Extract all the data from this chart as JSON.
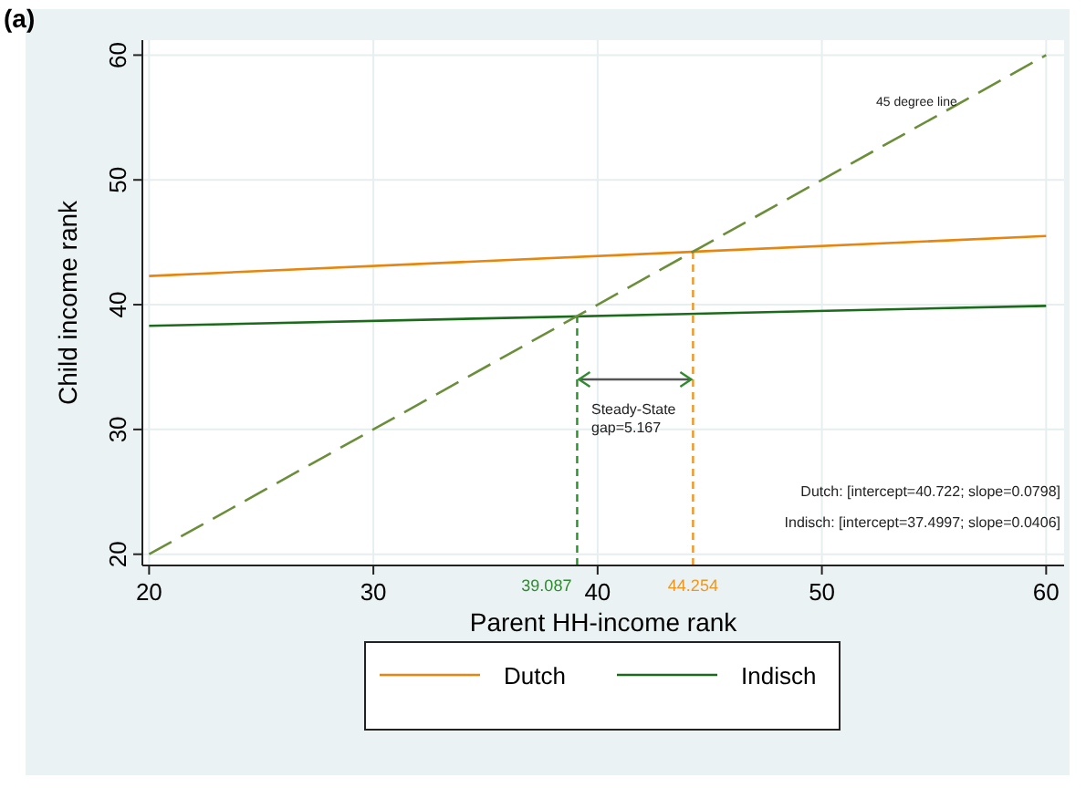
{
  "chart_data": {
    "type": "line",
    "title": "(a)",
    "xlabel": "Parent HH-income rank",
    "ylabel": "Child income rank",
    "x": [
      20,
      60
    ],
    "series": [
      {
        "name": "Dutch",
        "color": "#e8850c",
        "values": [
          42.3,
          45.5
        ]
      },
      {
        "name": "Indisch",
        "color": "#1a6b1a",
        "values": [
          38.3,
          39.9
        ]
      },
      {
        "color": "#6b8e3a",
        "values": [
          20,
          60
        ],
        "line_style": "dashed"
      }
    ],
    "xlim": [
      19.7,
      60.8
    ],
    "ylim": [
      19.1,
      61.2
    ],
    "xticks": [
      20,
      30,
      40,
      50,
      60
    ],
    "yticks": [
      20,
      30,
      40,
      50,
      60
    ],
    "grid": true,
    "legend": "bottom",
    "marker": "none",
    "line_style": "solid",
    "ref_lines": [
      {
        "axis": "x",
        "value": 39.087,
        "label": "39.087",
        "color": "#2e8b2e",
        "line_style": "dashed"
      },
      {
        "axis": "x",
        "value": 44.254,
        "label": "44.254",
        "color": "#f0961e",
        "line_style": "dashed"
      }
    ],
    "annotations": [
      "45 degree line",
      "Steady-State\ngap=5.167",
      "Dutch: [intercept=40.722; slope=0.0798]",
      "Indisch: [intercept=37.4997; slope=0.0406]"
    ]
  }
}
